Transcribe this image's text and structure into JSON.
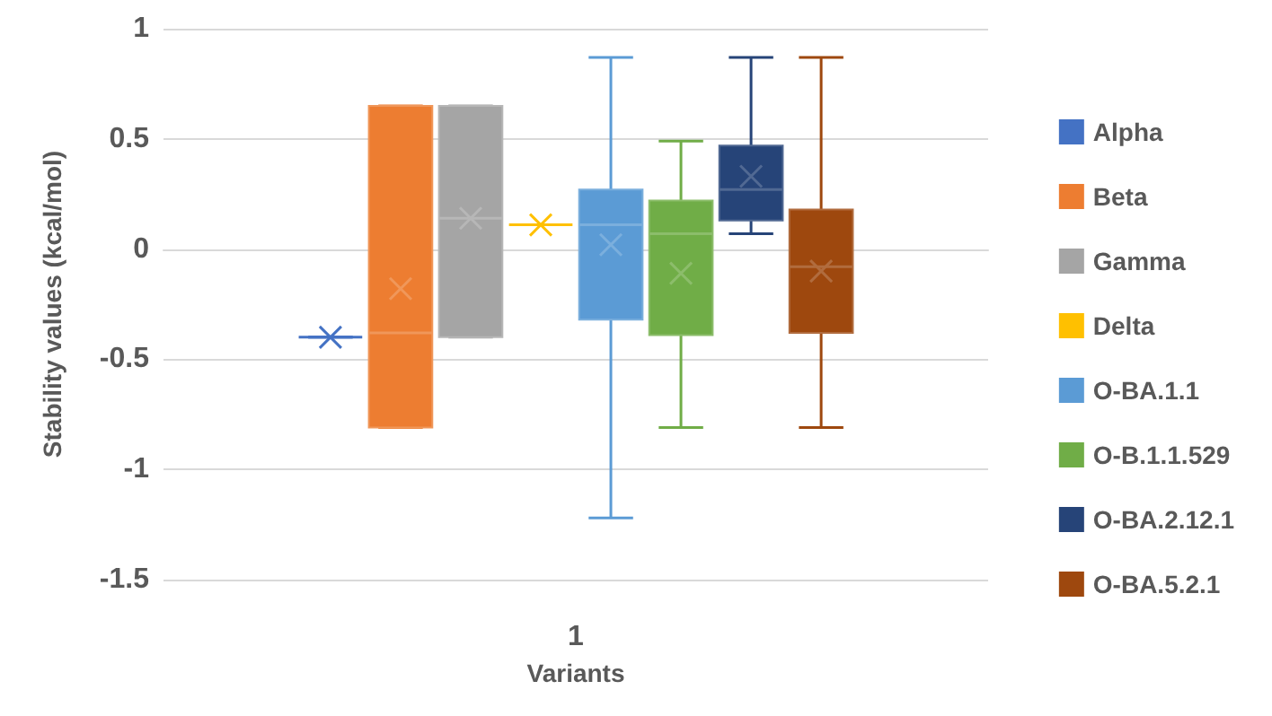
{
  "chart_data": {
    "type": "box",
    "categories": [
      "1"
    ],
    "xlabel": "Variants",
    "ylabel": "Stability values (kcal/mol)",
    "ylim": [
      -1.5,
      1
    ],
    "yticks": [
      -1.5,
      -1,
      -0.5,
      0,
      0.5,
      1
    ],
    "grid": "y",
    "legend": "right",
    "marker": "cross",
    "series": [
      {
        "name": "Alpha",
        "color": "#4472c4",
        "boxes": [
          {
            "low": -0.4,
            "q1": -0.4,
            "median": -0.4,
            "q3": -0.4,
            "high": -0.4,
            "mean": -0.4
          }
        ]
      },
      {
        "name": "Beta",
        "color": "#ed7d31",
        "boxes": [
          {
            "low": -0.81,
            "q1": -0.81,
            "median": -0.38,
            "q3": 0.65,
            "high": 0.65,
            "mean": -0.18
          }
        ]
      },
      {
        "name": "Gamma",
        "color": "#a5a5a5",
        "boxes": [
          {
            "low": -0.4,
            "q1": -0.4,
            "median": 0.14,
            "q3": 0.65,
            "high": 0.65,
            "mean": 0.14
          }
        ]
      },
      {
        "name": "Delta",
        "color": "#ffc000",
        "boxes": [
          {
            "low": 0.11,
            "q1": 0.11,
            "median": 0.11,
            "q3": 0.11,
            "high": 0.11,
            "mean": 0.11
          }
        ]
      },
      {
        "name": "O-BA.1.1",
        "color": "#5b9bd5",
        "boxes": [
          {
            "low": -1.22,
            "q1": -0.32,
            "median": 0.11,
            "q3": 0.27,
            "high": 0.87,
            "mean": 0.02
          }
        ]
      },
      {
        "name": "O-B.1.1.529",
        "color": "#70ad47",
        "boxes": [
          {
            "low": -0.81,
            "q1": -0.39,
            "median": 0.07,
            "q3": 0.22,
            "high": 0.49,
            "mean": -0.11
          }
        ]
      },
      {
        "name": "O-BA.2.12.1",
        "color": "#264478",
        "boxes": [
          {
            "low": 0.07,
            "q1": 0.13,
            "median": 0.27,
            "q3": 0.47,
            "high": 0.87,
            "mean": 0.33
          }
        ]
      },
      {
        "name": "O-BA.5.2.1",
        "color": "#9e480e",
        "boxes": [
          {
            "low": -0.81,
            "q1": -0.38,
            "median": -0.08,
            "q3": 0.18,
            "high": 0.87,
            "mean": -0.1
          }
        ]
      }
    ]
  }
}
